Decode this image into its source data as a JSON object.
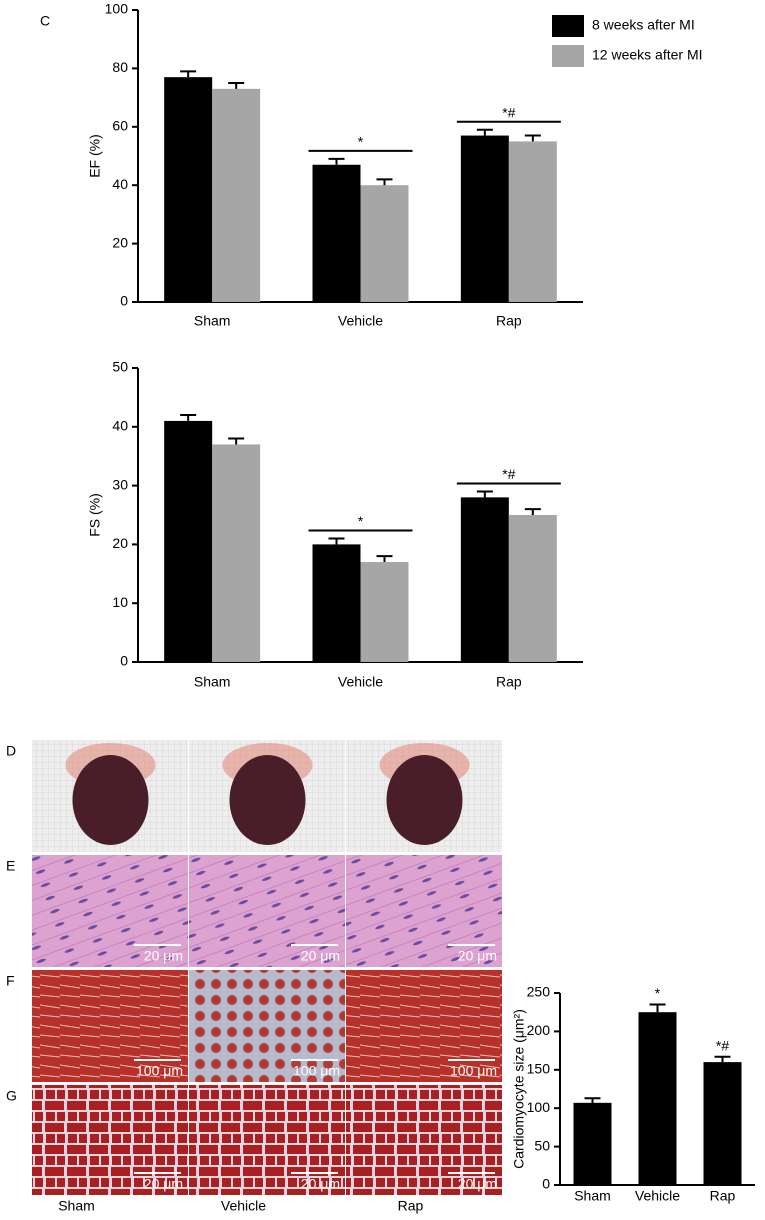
{
  "chart_data": [
    {
      "type": "bar",
      "ylabel": "EF (%)",
      "categories": [
        "Sham",
        "Vehicle",
        "Rap"
      ],
      "series": [
        {
          "name": "8 weeks after MI",
          "color": "#000000",
          "values": [
            77,
            47,
            57
          ],
          "errors": [
            2,
            2,
            2
          ]
        },
        {
          "name": "12 weeks after MI",
          "color": "#a6a6a6",
          "values": [
            73,
            40,
            55
          ],
          "errors": [
            2,
            2,
            2
          ]
        }
      ],
      "ylim": [
        0,
        100
      ],
      "yticks": [
        0,
        20,
        40,
        60,
        80,
        100
      ],
      "significance": [
        null,
        "*",
        "*#"
      ],
      "legend": "upper right"
    },
    {
      "type": "bar",
      "ylabel": "FS (%)",
      "categories": [
        "Sham",
        "Vehicle",
        "Rap"
      ],
      "series": [
        {
          "color": "#000000",
          "values": [
            41,
            20,
            28
          ],
          "errors": [
            1,
            1,
            1
          ]
        },
        {
          "color": "#a6a6a6",
          "values": [
            37,
            17,
            25
          ],
          "errors": [
            1,
            1,
            1
          ]
        }
      ],
      "ylim": [
        0,
        50
      ],
      "yticks": [
        0,
        10,
        20,
        30,
        40,
        50
      ],
      "significance": [
        null,
        "*",
        "*#"
      ]
    },
    {
      "type": "bar",
      "ylabel": "Cardiomyocyte size (μm²)",
      "categories": [
        "Sham",
        "Vehicle",
        "Rap"
      ],
      "values": [
        107,
        225,
        160
      ],
      "errors": [
        6,
        10,
        7
      ],
      "color": "#000000",
      "ylim": [
        0,
        250
      ],
      "yticks": [
        0,
        50,
        100,
        150,
        200,
        250
      ],
      "significance": [
        null,
        "*",
        "*#"
      ]
    }
  ],
  "figure": {
    "chart_panel": "C",
    "image_panels": [
      {
        "letter": "D"
      },
      {
        "letter": "E",
        "scale_bars": [
          "20 μm",
          "20 μm",
          "20 μm"
        ]
      },
      {
        "letter": "F",
        "scale_bars": [
          "100 μm",
          "100 μm",
          "100 μm"
        ]
      },
      {
        "letter": "G",
        "scale_bars": [
          "20 μm",
          "20 μm",
          "20 μm"
        ]
      }
    ],
    "columns": [
      "Sham",
      "Vehicle",
      "Rap"
    ]
  }
}
